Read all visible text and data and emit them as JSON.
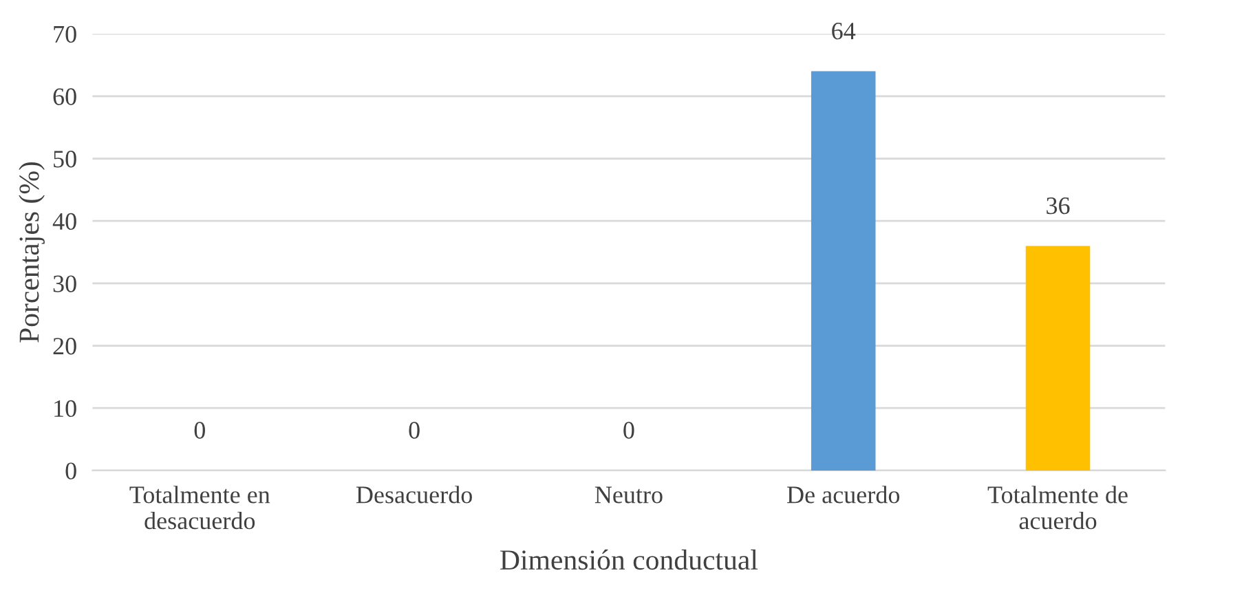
{
  "chart_data": {
    "type": "bar",
    "xlabel": "Dimensión conductual",
    "ylabel": "Porcentajes (%)",
    "categories": [
      "Totalmente en desacuerdo",
      "Desacuerdo",
      "Neutro",
      "De acuerdo",
      "Totalmente de acuerdo"
    ],
    "values": [
      0,
      0,
      0,
      64,
      36
    ],
    "colors": [
      "#5b9bd5",
      "#5b9bd5",
      "#5b9bd5",
      "#5b9bd5",
      "#ffc000"
    ],
    "ylim": [
      0,
      70
    ],
    "yticks": [
      0,
      10,
      20,
      30,
      40,
      50,
      60,
      70
    ],
    "grid": "y",
    "data_labels": true
  }
}
